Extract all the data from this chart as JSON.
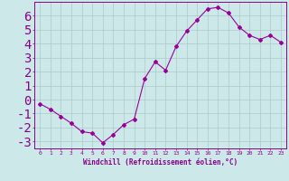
{
  "x": [
    0,
    1,
    2,
    3,
    4,
    5,
    6,
    7,
    8,
    9,
    10,
    11,
    12,
    13,
    14,
    15,
    16,
    17,
    18,
    19,
    20,
    21,
    22,
    23
  ],
  "y": [
    -0.3,
    -0.7,
    -1.2,
    -1.7,
    -2.3,
    -2.4,
    -3.1,
    -2.5,
    -1.8,
    -1.4,
    1.5,
    2.7,
    2.1,
    3.8,
    4.9,
    5.7,
    6.5,
    6.6,
    6.2,
    5.2,
    4.6,
    4.3,
    4.6,
    4.1
  ],
  "line_color": "#990099",
  "marker": "D",
  "marker_size": 2,
  "bg_color": "#cce8e8",
  "grid_color": "#aacccc",
  "xlabel": "Windchill (Refroidissement éolien,°C)",
  "xlabel_color": "#880088",
  "tick_color": "#880088",
  "spine_color": "#880088",
  "xlim": [
    -0.5,
    23.5
  ],
  "ylim": [
    -3.5,
    7.0
  ],
  "yticks": [
    -3,
    -2,
    -1,
    0,
    1,
    2,
    3,
    4,
    5,
    6
  ],
  "xticks": [
    0,
    1,
    2,
    3,
    4,
    5,
    6,
    7,
    8,
    9,
    10,
    11,
    12,
    13,
    14,
    15,
    16,
    17,
    18,
    19,
    20,
    21,
    22,
    23
  ]
}
